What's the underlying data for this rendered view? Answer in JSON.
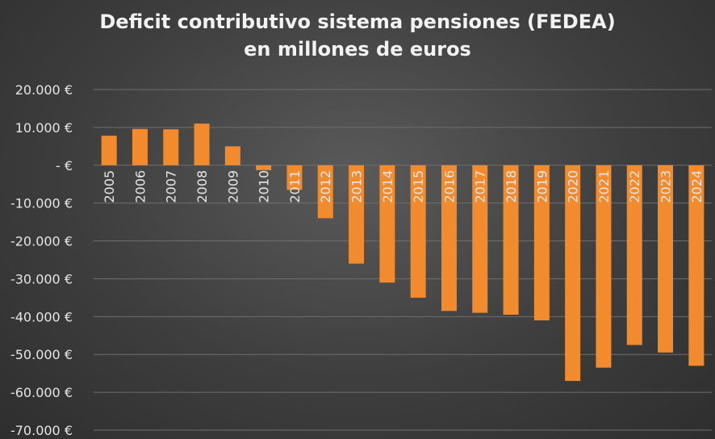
{
  "chart_data": {
    "type": "bar",
    "title_line1": "Deficit contributivo sistema pensiones (FEDEA)",
    "title_line2": "en millones de euros",
    "xlabel": "",
    "ylabel": "",
    "categories": [
      "2005",
      "2006",
      "2007",
      "2008",
      "2009",
      "2010",
      "2011",
      "2012",
      "2013",
      "2014",
      "2015",
      "2016",
      "2017",
      "2018",
      "2019",
      "2020",
      "2021",
      "2022",
      "2023",
      "2024"
    ],
    "values": [
      7800,
      9600,
      9500,
      11000,
      5000,
      -1300,
      -6500,
      -14000,
      -26000,
      -31000,
      -35000,
      -38500,
      -39000,
      -39500,
      -41000,
      -57000,
      -53500,
      -47500,
      -49500,
      -53000
    ],
    "ylim": [
      -70000,
      20000
    ],
    "yticks": [
      20000,
      10000,
      0,
      -10000,
      -20000,
      -30000,
      -40000,
      -50000,
      -60000,
      -70000
    ],
    "ytick_labels": [
      "20.000 €",
      "10.000 €",
      "- €",
      "-10.000 €",
      "-20.000 €",
      "-30.000 €",
      "-40.000 €",
      "-50.000 €",
      "-60.000 €",
      "-70.000 €"
    ],
    "grid": true,
    "legend": "none",
    "bar_color": "#f28a2e",
    "grid_color": "#6e6e6e",
    "text_color": "#e6e6e6"
  }
}
